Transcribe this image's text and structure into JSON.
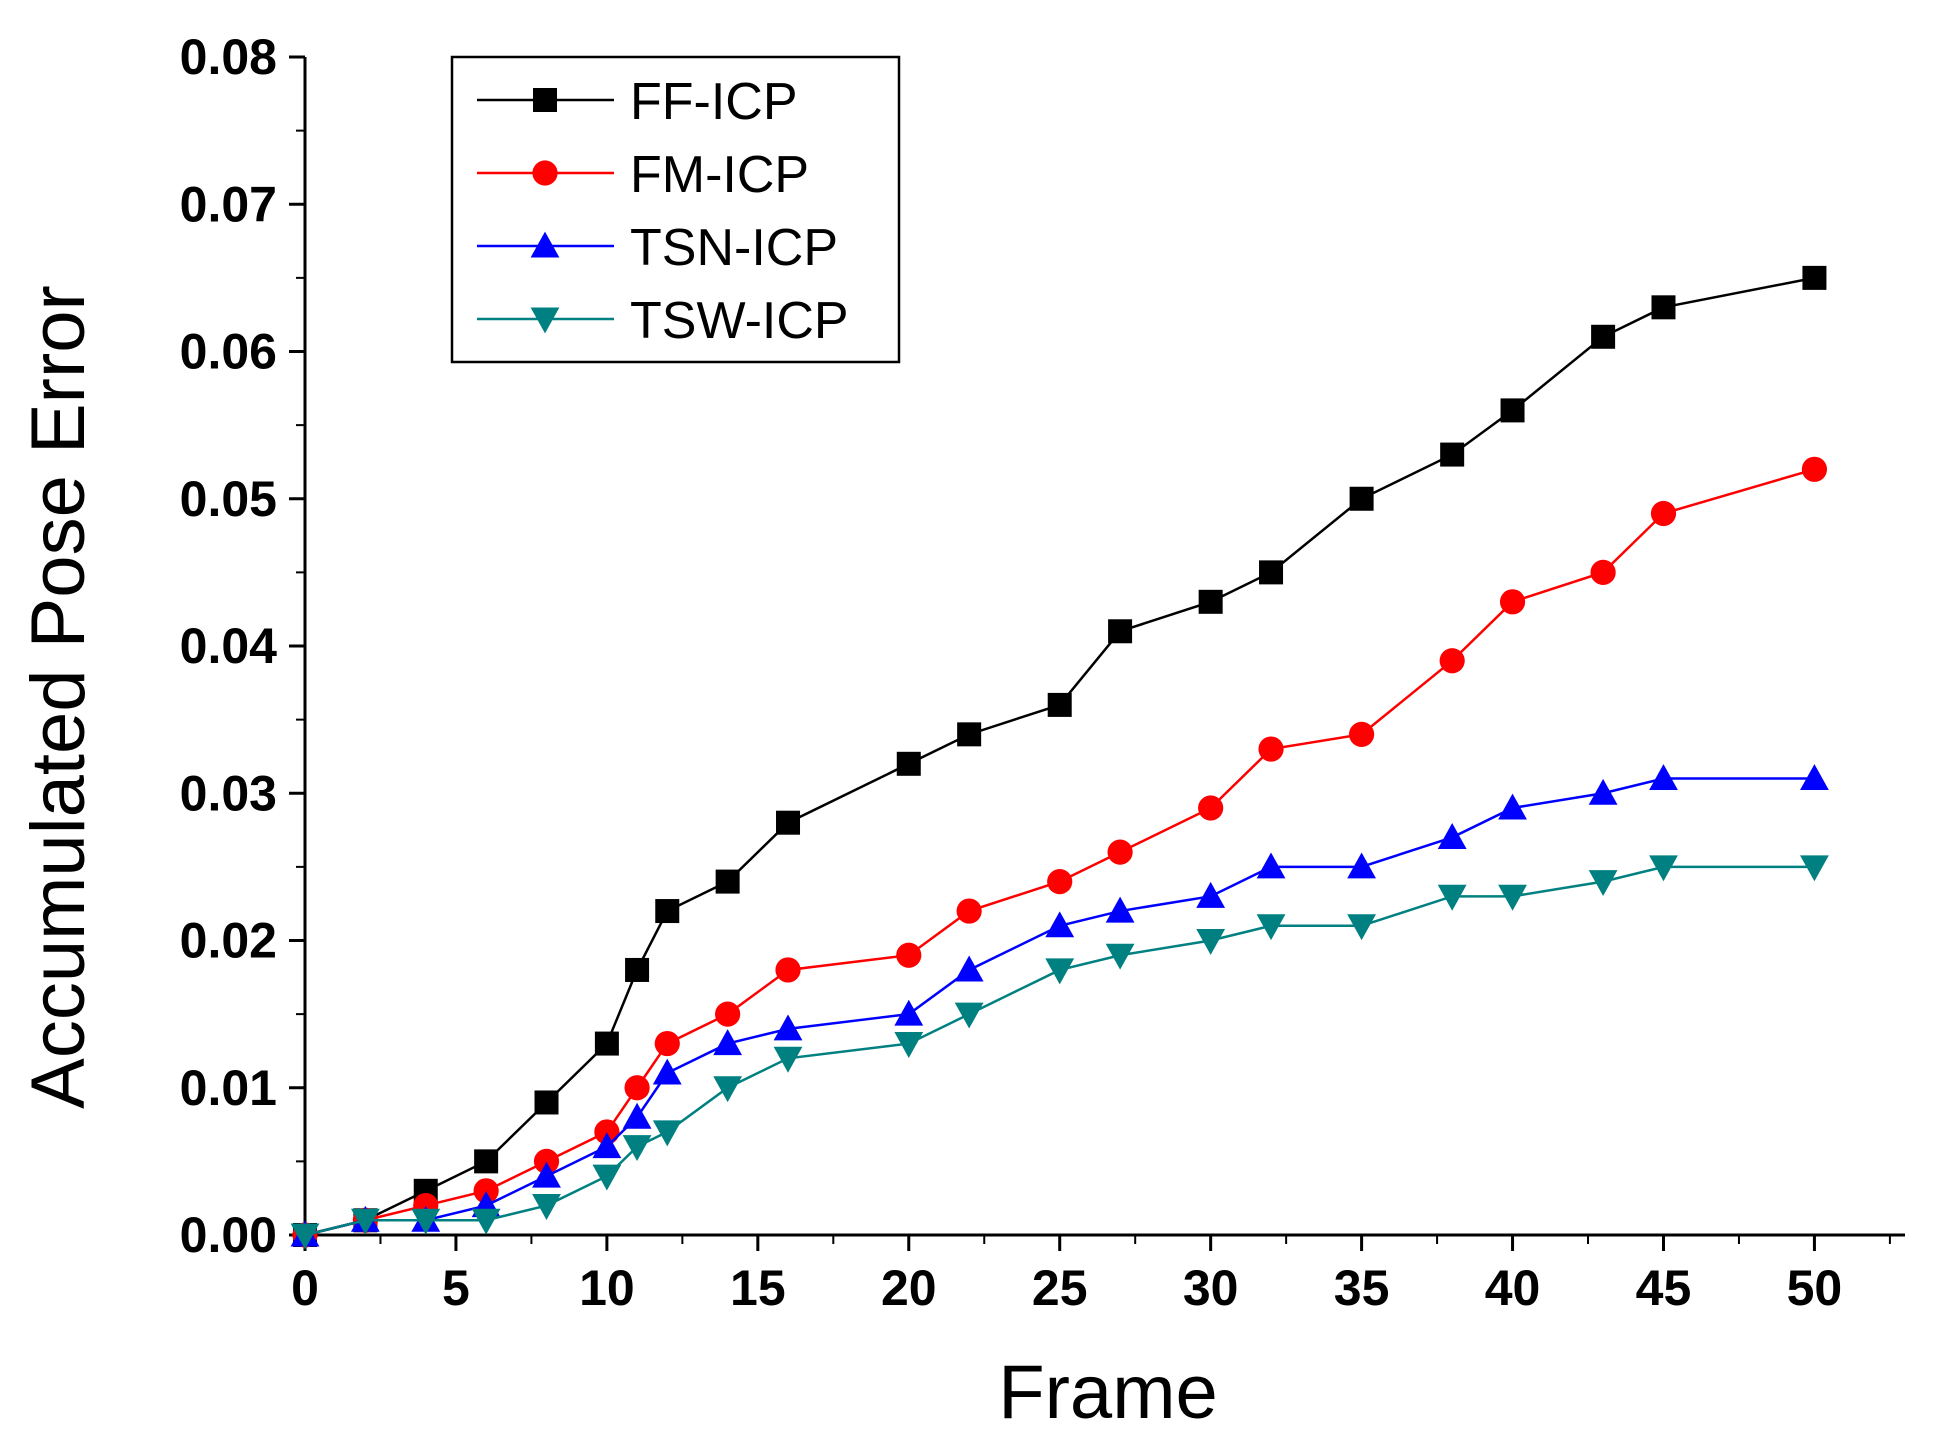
{
  "chart_data": {
    "type": "line",
    "title": "",
    "xlabel": "Frame",
    "ylabel": "Accumulated Pose Error",
    "xlim": [
      0,
      53
    ],
    "ylim": [
      0,
      0.08
    ],
    "x_ticks": [
      0,
      5,
      10,
      15,
      20,
      25,
      30,
      35,
      40,
      45,
      50
    ],
    "x_tick_labels": [
      "0",
      "5",
      "10",
      "15",
      "20",
      "25",
      "30",
      "35",
      "40",
      "45",
      "50"
    ],
    "y_ticks": [
      0,
      0.01,
      0.02,
      0.03,
      0.04,
      0.05,
      0.06,
      0.07,
      0.08
    ],
    "y_tick_labels": [
      "0.00",
      "0.01",
      "0.02",
      "0.03",
      "0.04",
      "0.05",
      "0.06",
      "0.07",
      "0.08"
    ],
    "grid": false,
    "legend_position": "top-left",
    "series": [
      {
        "name": "FF-ICP",
        "color": "#000000",
        "marker": "square",
        "x": [
          0,
          2,
          4,
          6,
          8,
          10,
          11,
          12,
          14,
          16,
          20,
          22,
          25,
          27,
          30,
          32,
          35,
          38,
          40,
          43,
          45,
          50
        ],
        "values": [
          0,
          0.001,
          0.003,
          0.005,
          0.009,
          0.013,
          0.018,
          0.022,
          0.024,
          0.028,
          0.032,
          0.034,
          0.036,
          0.041,
          0.043,
          0.045,
          0.05,
          0.053,
          0.056,
          0.061,
          0.063,
          0.065
        ]
      },
      {
        "name": "FM-ICP",
        "color": "#ff0000",
        "marker": "circle",
        "x": [
          0,
          2,
          4,
          6,
          8,
          10,
          11,
          12,
          14,
          16,
          20,
          22,
          25,
          27,
          30,
          32,
          35,
          38,
          40,
          43,
          45,
          50
        ],
        "values": [
          0,
          0.001,
          0.002,
          0.003,
          0.005,
          0.007,
          0.01,
          0.013,
          0.015,
          0.018,
          0.019,
          0.022,
          0.024,
          0.026,
          0.029,
          0.033,
          0.034,
          0.039,
          0.043,
          0.045,
          0.049,
          0.052
        ]
      },
      {
        "name": "TSN-ICP",
        "color": "#0000ff",
        "marker": "triangle-up",
        "x": [
          0,
          2,
          4,
          6,
          8,
          10,
          11,
          12,
          14,
          16,
          20,
          22,
          25,
          27,
          30,
          32,
          35,
          38,
          40,
          43,
          45,
          50
        ],
        "values": [
          0,
          0.001,
          0.001,
          0.002,
          0.004,
          0.006,
          0.008,
          0.011,
          0.013,
          0.014,
          0.015,
          0.018,
          0.021,
          0.022,
          0.023,
          0.025,
          0.025,
          0.027,
          0.029,
          0.03,
          0.031,
          0.031
        ]
      },
      {
        "name": "TSW-ICP",
        "color": "#008080",
        "marker": "triangle-down",
        "x": [
          0,
          2,
          4,
          6,
          8,
          10,
          11,
          12,
          14,
          16,
          20,
          22,
          25,
          27,
          30,
          32,
          35,
          38,
          40,
          43,
          45,
          50
        ],
        "values": [
          0,
          0.001,
          0.001,
          0.001,
          0.002,
          0.004,
          0.006,
          0.007,
          0.01,
          0.012,
          0.013,
          0.015,
          0.018,
          0.019,
          0.02,
          0.021,
          0.021,
          0.023,
          0.023,
          0.024,
          0.025,
          0.025
        ]
      }
    ]
  }
}
